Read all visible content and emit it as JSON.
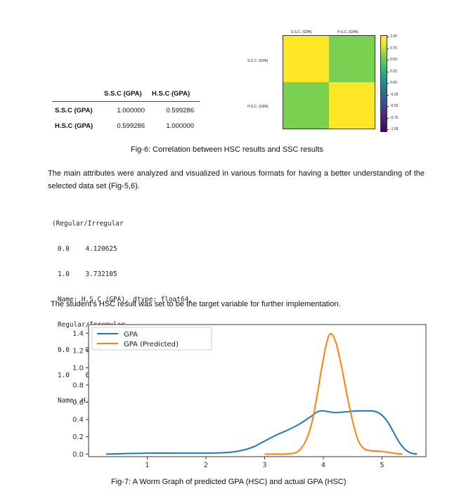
{
  "correlation_table": {
    "columns": [
      "S.S.C (GPA)",
      "H.S.C (GPA)"
    ],
    "rows": [
      {
        "label": "S.S.C (GPA)",
        "values": [
          "1.000000",
          "0.599286"
        ]
      },
      {
        "label": "H.S.C (GPA)",
        "values": [
          "0.599286",
          "1.000000"
        ]
      }
    ]
  },
  "heatmap": {
    "x_labels": [
      "S.S.C. (GPA)",
      "H.S.C. (GPA)"
    ],
    "y_labels": [
      "S.S.C. (GPA)",
      "H.S.C. (GPA)"
    ],
    "cell_colors": [
      [
        "#fde725",
        "#7ad151"
      ],
      [
        "#7ad151",
        "#fde725"
      ]
    ],
    "colorbar_ticks": [
      "1.00",
      "0.75",
      "0.50",
      "0.25",
      "0.00",
      "-0.25",
      "-0.50",
      "-0.75",
      "-1.00"
    ]
  },
  "fig6_caption": "Fig-6: Correlation between HSC results and SSC results",
  "paragraph1": "The main attributes were analyzed and visualized in various formats for having a better understanding of the selected data set (Fig-5,6).",
  "code_lines": [
    "(Regular/Irregular",
    "0.0    4.120625",
    "1.0    3.732105",
    "Name: H.S.C (GPA), dtype: float64,",
    "Regular/Irregular",
    "0.0    0.657425",
    "1.0    0.742440",
    "Name: H.S.C (GPA), dtype: float64)"
  ],
  "paragraph2": "The student’s HSC result was set to be the target variable for further implementation.",
  "chart_data": {
    "type": "line",
    "title": "",
    "xlabel": "",
    "ylabel": "",
    "xlim": [
      0.0,
      5.75
    ],
    "ylim": [
      -0.03,
      1.5
    ],
    "x_ticks": [
      "1",
      "2",
      "3",
      "4",
      "5"
    ],
    "y_ticks": [
      "0.0",
      "0.2",
      "0.4",
      "0.6",
      "0.8",
      "1.0",
      "1.2",
      "1.4"
    ],
    "legend": "top-left",
    "series": [
      {
        "name": "GPA",
        "color": "#1f77b4",
        "x": [
          0.3,
          1.0,
          1.5,
          2.0,
          2.4,
          2.6,
          2.8,
          3.0,
          3.2,
          3.4,
          3.6,
          3.8,
          3.9,
          4.0,
          4.2,
          4.4,
          4.6,
          4.8,
          4.9,
          5.0,
          5.1,
          5.2,
          5.3,
          5.4,
          5.5,
          5.6
        ],
        "y": [
          0.0,
          0.01,
          0.01,
          0.01,
          0.02,
          0.04,
          0.08,
          0.15,
          0.22,
          0.28,
          0.35,
          0.44,
          0.49,
          0.5,
          0.48,
          0.49,
          0.5,
          0.5,
          0.49,
          0.45,
          0.37,
          0.25,
          0.13,
          0.05,
          0.01,
          0.0
        ]
      },
      {
        "name": "GPA (Predicted)",
        "color": "#ff7f0e",
        "x": [
          3.0,
          3.3,
          3.5,
          3.6,
          3.7,
          3.8,
          3.9,
          4.0,
          4.1,
          4.2,
          4.3,
          4.4,
          4.5,
          4.6,
          4.7,
          4.8,
          5.0,
          5.2,
          5.35
        ],
        "y": [
          0.0,
          0.0,
          0.01,
          0.05,
          0.15,
          0.35,
          0.7,
          1.1,
          1.38,
          1.32,
          1.05,
          0.7,
          0.38,
          0.15,
          0.06,
          0.04,
          0.03,
          0.01,
          0.0
        ]
      }
    ]
  },
  "fig7_caption": "Fig-7: A Worm Graph of predicted GPA (HSC) and actual GPA (HSC)"
}
